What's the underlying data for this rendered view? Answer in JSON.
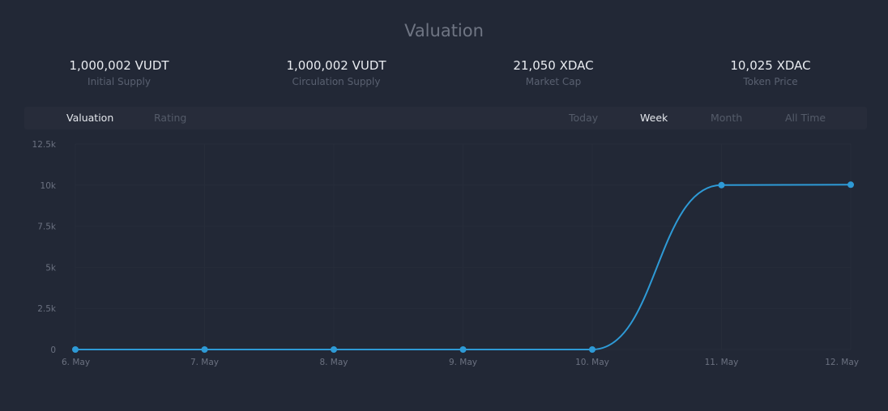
{
  "header": {
    "title": "Valuation"
  },
  "stats": [
    {
      "value": "1,000,002 VUDT",
      "label": "Initial Supply"
    },
    {
      "value": "1,000,002 VUDT",
      "label": "Circulation Supply"
    },
    {
      "value": "21,050 XDAC",
      "label": "Market Cap"
    },
    {
      "value": "10,025 XDAC",
      "label": "Token Price"
    }
  ],
  "tabs": {
    "left": [
      "Valuation",
      "Rating"
    ],
    "right": [
      "Today",
      "Week",
      "Month",
      "All Time"
    ],
    "active_left": "Valuation",
    "active_right": "Week"
  },
  "colors": {
    "background": "#222836",
    "line": "#2e9ad6",
    "grid": "#272d3a"
  },
  "chart_data": {
    "type": "line",
    "title": "",
    "xlabel": "",
    "ylabel": "",
    "categories": [
      "6. May",
      "7. May",
      "8. May",
      "9. May",
      "10. May",
      "11. May",
      "12. May"
    ],
    "series": [
      {
        "values": [
          0,
          0,
          0,
          0,
          0,
          10000,
          10025
        ]
      }
    ],
    "ylim": [
      0,
      12500
    ],
    "yticks": [
      0,
      2500,
      5000,
      7500,
      10000,
      12500
    ],
    "ytick_labels": [
      "0",
      "2.5k",
      "5k",
      "7.5k",
      "10k",
      "12.5k"
    ],
    "grid": true,
    "legend": "none",
    "smooth": true,
    "markers": true
  }
}
